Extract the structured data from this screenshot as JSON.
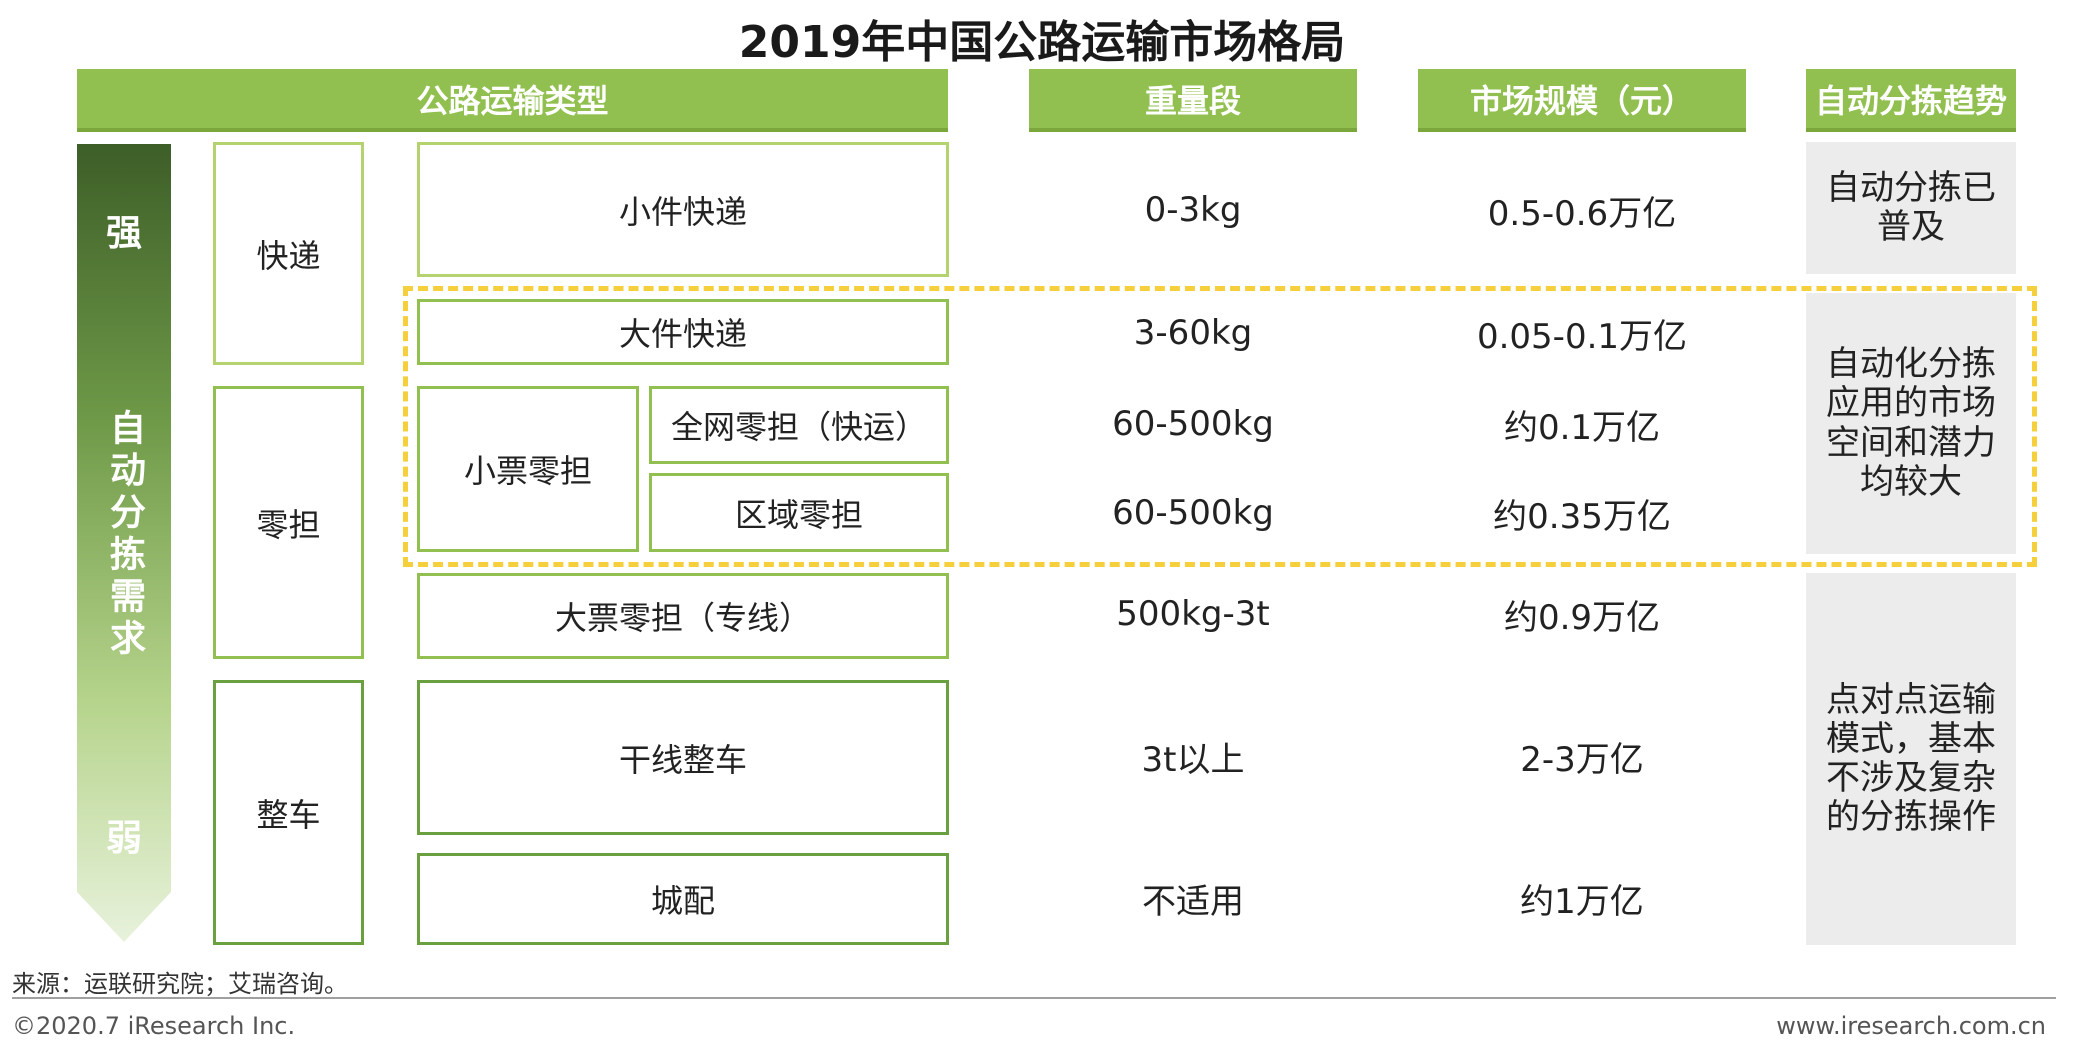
{
  "title": "2019年中国公路运输市场格局",
  "headers": {
    "type": "公路运输类型",
    "weight": "重量段",
    "scale": "市场规模（元）",
    "trend": "自动分拣趋势"
  },
  "demand_arrow": {
    "strong": "强",
    "middle": "自动分拣需求",
    "weak": "弱"
  },
  "categories": {
    "express": "快递",
    "ltl": "零担",
    "ftl": "整车"
  },
  "sub_ltl_small": "小票零担",
  "rows": [
    {
      "type": "小件快递",
      "weight": "0-3kg",
      "scale": "0.5-0.6万亿"
    },
    {
      "type": "大件快递",
      "weight": "3-60kg",
      "scale": "0.05-0.1万亿"
    },
    {
      "type": "全网零担（快运）",
      "weight": "60-500kg",
      "scale": "约0.1万亿"
    },
    {
      "type": "区域零担",
      "weight": "60-500kg",
      "scale": "约0.35万亿"
    },
    {
      "type": "大票零担（专线）",
      "weight": "500kg-3t",
      "scale": "约0.9万亿"
    },
    {
      "type": "干线整车",
      "weight": "3t以上",
      "scale": "2-3万亿"
    },
    {
      "type": "城配",
      "weight": "不适用",
      "scale": "约1万亿"
    }
  ],
  "trends": [
    "自动分拣已普及",
    "自动化分拣应用的市场空间和潜力均较大",
    "点对点运输模式，基本不涉及复杂的分拣操作"
  ],
  "footer": {
    "source": "来源：运联研究院；艾瑞咨询。",
    "copyright": "©2020.7 iResearch Inc.",
    "website": "www.iresearch.com.cn"
  },
  "colors": {
    "header_green": "#92c050",
    "arrow_top": "#3d5e28",
    "arrow_bottom": "#e8f2dc",
    "highlight_dash": "#f5d03c",
    "trend_bg": "#ececec"
  }
}
